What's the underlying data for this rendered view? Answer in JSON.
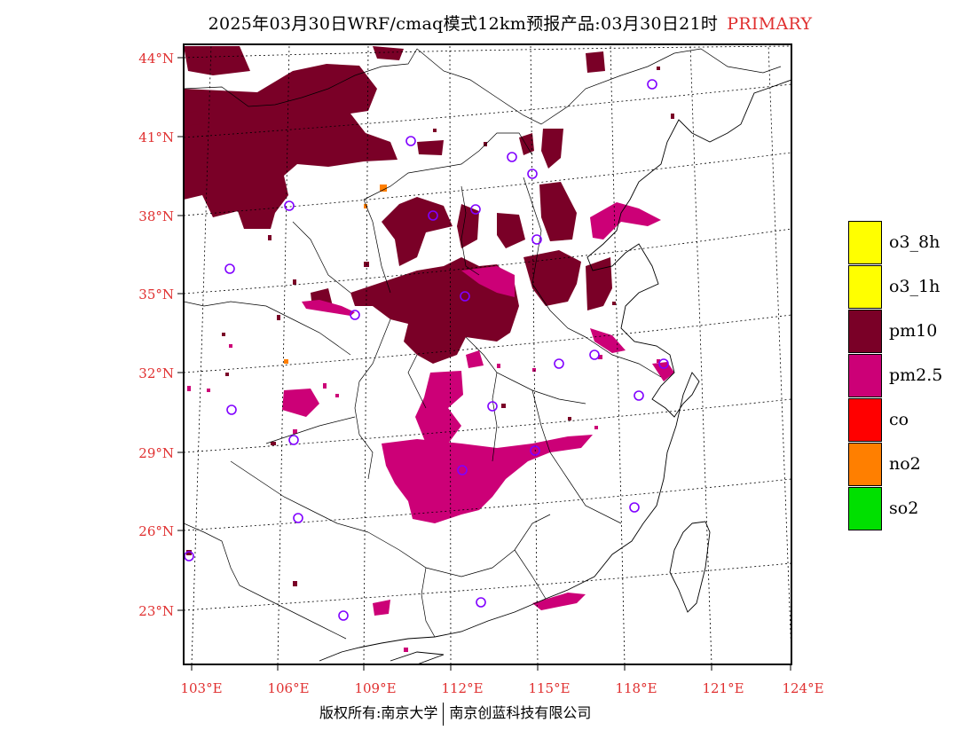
{
  "title": {
    "main": "2025年03月30日WRF/cmaq模式12km预报产品:03月30日21时",
    "tag": "PRIMARY"
  },
  "axes": {
    "lat_labels": [
      "44°N",
      "41°N",
      "38°N",
      "35°N",
      "32°N",
      "29°N",
      "26°N",
      "23°N"
    ],
    "lon_labels": [
      "103°E",
      "106°E",
      "109°E",
      "112°E",
      "115°E",
      "118°E",
      "121°E",
      "124°E"
    ]
  },
  "legend": {
    "items": [
      {
        "label": "o3_8h",
        "color": "#ffff00"
      },
      {
        "label": "o3_1h",
        "color": "#ffff00"
      },
      {
        "label": "pm10",
        "color": "#7a0027"
      },
      {
        "label": "pm2.5",
        "color": "#cc0077"
      },
      {
        "label": "co",
        "color": "#ff0000"
      },
      {
        "label": "no2",
        "color": "#ff7f00"
      },
      {
        "label": "so2",
        "color": "#00e000"
      }
    ]
  },
  "footer": {
    "left": "版权所有:南京大学",
    "right": "南京创蓝科技有限公司"
  },
  "colors": {
    "pm10": "#7a0027",
    "pm25": "#cc0077",
    "no2": "#ff7f00",
    "station": "#8000ff",
    "axis_label": "#e03030"
  }
}
